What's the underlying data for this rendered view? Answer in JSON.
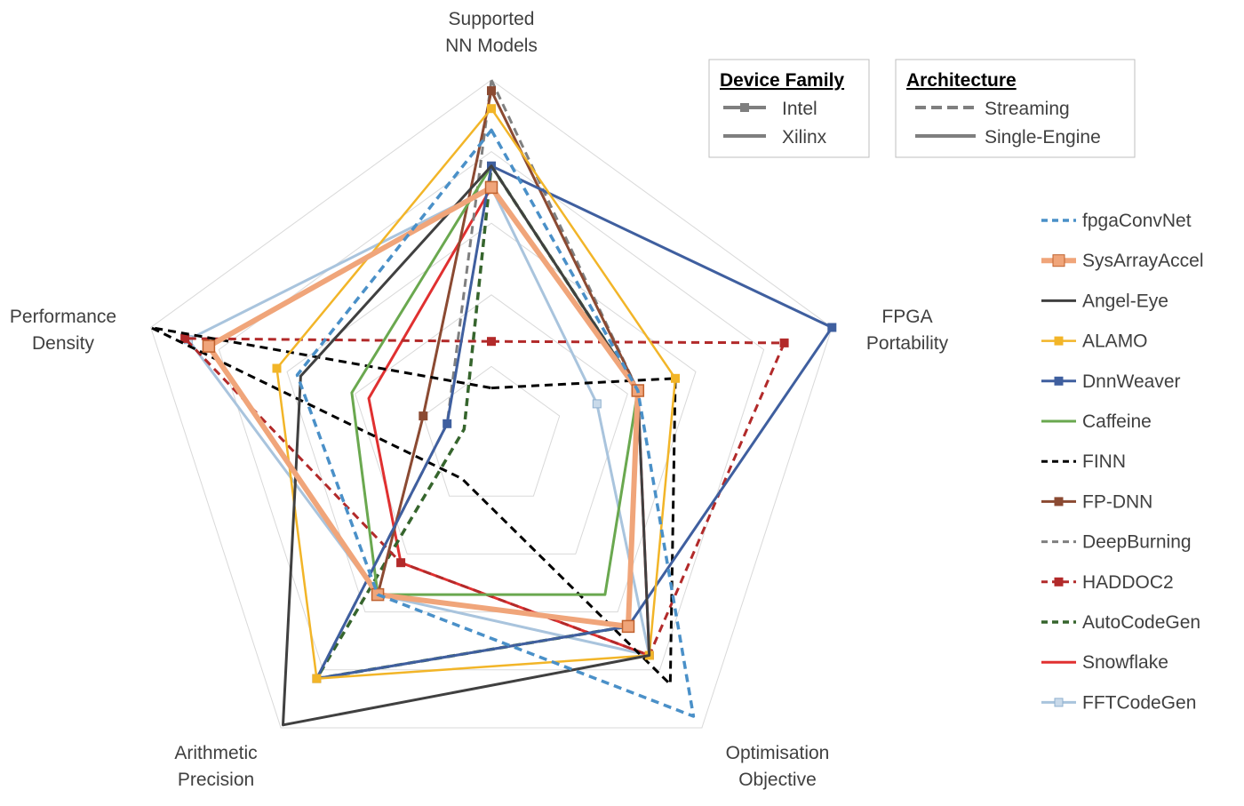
{
  "chart_data": {
    "type": "radar",
    "axes": [
      [
        "Supported",
        "NN Models"
      ],
      [
        "FPGA",
        "Portability"
      ],
      [
        "Optimisation",
        "Objective"
      ],
      [
        "Arithmetic",
        "Precision"
      ],
      [
        "Performance",
        "Density"
      ]
    ],
    "range": [
      0,
      1
    ],
    "grid_levels": 5,
    "legend_position": "right",
    "device_family_legend": {
      "title": "Device Family",
      "items": [
        {
          "label": "Intel",
          "marker": true
        },
        {
          "label": "Xilinx",
          "marker": false
        }
      ]
    },
    "architecture_legend": {
      "title": "Architecture",
      "items": [
        {
          "label": "Streaming",
          "dashed": true
        },
        {
          "label": "Single-Engine",
          "dashed": false
        }
      ]
    },
    "series": [
      {
        "name": "fpgaConvNet",
        "color": "#4a90c8",
        "dashed": true,
        "marker": false,
        "width": 3.5,
        "values": [
          0.86,
          0.43,
          0.96,
          0.54,
          0.57
        ]
      },
      {
        "name": "SysArrayAccel",
        "color": "#f0a57a",
        "dashed": false,
        "marker": true,
        "marker_style": "square-large",
        "width": 6,
        "values": [
          0.7,
          0.43,
          0.65,
          0.54,
          0.83
        ]
      },
      {
        "name": "Angel-Eye",
        "color": "#404040",
        "dashed": false,
        "marker": false,
        "width": 3,
        "values": [
          0.76,
          0.43,
          0.75,
          0.99,
          0.56
        ]
      },
      {
        "name": "ALAMO",
        "color": "#f2b528",
        "dashed": false,
        "marker": true,
        "marker_style": "square",
        "width": 2.5,
        "values": [
          0.92,
          0.54,
          0.75,
          0.83,
          0.63
        ]
      },
      {
        "name": "DnnWeaver",
        "color": "#3f5f9f",
        "dashed": false,
        "marker": true,
        "marker_style": "square",
        "width": 3,
        "values": [
          0.76,
          1.0,
          0.65,
          0.83,
          0.13
        ]
      },
      {
        "name": "Caffeine",
        "color": "#6aa84f",
        "dashed": false,
        "marker": false,
        "width": 3,
        "values": [
          0.76,
          0.43,
          0.54,
          0.54,
          0.41
        ]
      },
      {
        "name": "FINN",
        "color": "#000000",
        "dashed": true,
        "marker": false,
        "width": 3,
        "values": [
          0.14,
          0.54,
          0.85,
          0.14,
          1.0
        ]
      },
      {
        "name": "FP-DNN",
        "color": "#8b4a32",
        "dashed": false,
        "marker": true,
        "marker_style": "square",
        "width": 3,
        "values": [
          0.97,
          0.43,
          0.65,
          0.54,
          0.2
        ]
      },
      {
        "name": "DeepBurning",
        "color": "#7f7f7f",
        "dashed": true,
        "marker": false,
        "width": 3,
        "values": [
          1.0,
          0.43,
          0.65,
          0.83,
          0.13
        ]
      },
      {
        "name": "HADDOC2",
        "color": "#b22a2a",
        "dashed": true,
        "marker": true,
        "marker_style": "square",
        "width": 3,
        "values": [
          0.27,
          0.86,
          0.75,
          0.43,
          0.9
        ]
      },
      {
        "name": "AutoCodeGen",
        "color": "#36652d",
        "dashed": true,
        "marker": false,
        "width": 3.5,
        "values": [
          0.76,
          0.43,
          0.65,
          0.83,
          0.08
        ]
      },
      {
        "name": "Snowflake",
        "color": "#e03030",
        "dashed": false,
        "marker": false,
        "width": 3,
        "values": [
          0.7,
          0.43,
          0.75,
          0.43,
          0.36
        ]
      },
      {
        "name": "FFTCodeGen",
        "color": "#a9c4dd",
        "dashed": false,
        "marker": true,
        "marker_style": "square-light",
        "width": 3,
        "values": [
          0.7,
          0.31,
          0.75,
          0.54,
          0.89
        ]
      }
    ]
  }
}
